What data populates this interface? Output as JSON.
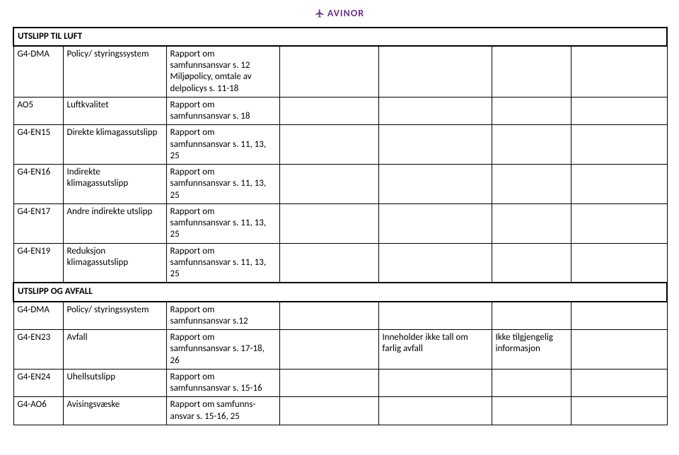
{
  "brand": {
    "name": "AVINOR",
    "color": "#6f2c91"
  },
  "sections": [
    {
      "title": "UTSLIPP TIL LUFT",
      "rows": [
        {
          "code": "G4-DMA",
          "label": "Policy/ styringssystem",
          "ref": "Rapport om samfunnsansvar s. 12 Miljøpolicy, omtale av delpolicys s. 11-18",
          "c3": "",
          "c4": "",
          "c5": "",
          "c6": ""
        },
        {
          "code": "AO5",
          "label": "Luftkvalitet",
          "ref": "Rapport om samfunnsansvar s. 18",
          "c3": "",
          "c4": "",
          "c5": "",
          "c6": ""
        },
        {
          "code": "G4-EN15",
          "label": "Direkte klimagassutslipp",
          "ref": "Rapport om samfunnsansvar s. 11, 13, 25",
          "c3": "",
          "c4": "",
          "c5": "",
          "c6": ""
        },
        {
          "code": "G4-EN16",
          "label": "Indirekte klimagassutslipp",
          "ref": "Rapport om samfunnsansvar s. 11, 13, 25",
          "c3": "",
          "c4": "",
          "c5": "",
          "c6": ""
        },
        {
          "code": "G4-EN17",
          "label": "Andre indirekte utslipp",
          "ref": "Rapport om samfunnsansvar s. 11, 13, 25",
          "c3": "",
          "c4": "",
          "c5": "",
          "c6": ""
        },
        {
          "code": "G4-EN19",
          "label": "Reduksjon klimagassutslipp",
          "ref": "Rapport om samfunnsansvar s. 11, 13, 25",
          "c3": "",
          "c4": "",
          "c5": "",
          "c6": ""
        }
      ]
    },
    {
      "title": "UTSLIPP OG AVFALL",
      "rows": [
        {
          "code": "G4-DMA",
          "label": "Policy/ styringssystem",
          "ref": "Rapport om samfunnsansvar s.12",
          "c3": "",
          "c4": "",
          "c5": "",
          "c6": ""
        },
        {
          "code": "G4-EN23",
          "label": "Avfall",
          "ref": "Rapport om samfunnsansvar s. 17-18, 26",
          "c3": "",
          "c4": "Inneholder ikke tall om farlig avfall",
          "c5": "Ikke tilgjengelig informasjon",
          "c6": ""
        },
        {
          "code": "G4-EN24",
          "label": "Uhellsutslipp",
          "ref": "Rapport om samfunnsansvar s. 15-16",
          "c3": "",
          "c4": "",
          "c5": "",
          "c6": ""
        },
        {
          "code": "G4-AO6",
          "label": "Avisingsvæske",
          "ref": "Rapport om samfunns-ansvar s. 15-16, 25",
          "c3": "",
          "c4": "",
          "c5": "",
          "c6": ""
        }
      ]
    }
  ]
}
